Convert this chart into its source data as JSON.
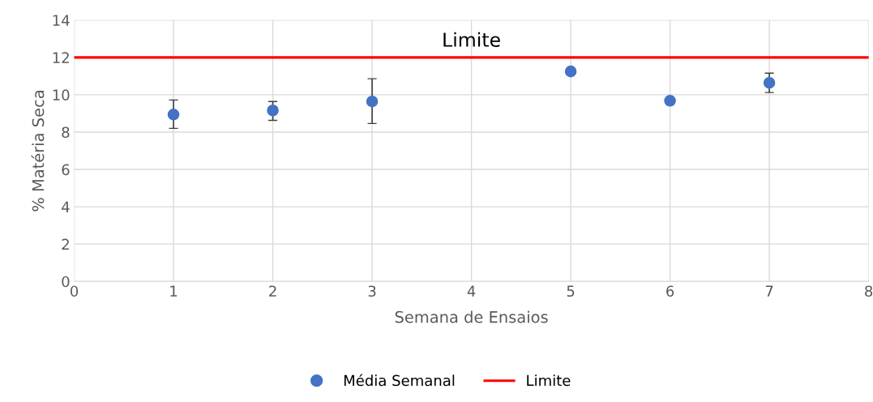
{
  "chart_data": {
    "type": "scatter",
    "xlabel": "Semana de Ensaios",
    "ylabel": "% Matéria Seca",
    "x": [
      1,
      2,
      3,
      5,
      6,
      7
    ],
    "series": [
      {
        "name": "Média Semanal",
        "color": "#4472c4",
        "values": [
          8.94,
          9.16,
          9.64,
          11.25,
          9.68,
          10.64
        ],
        "errors": [
          [
            8.2,
            9.72
          ],
          [
            8.63,
            9.64
          ],
          [
            8.46,
            10.86
          ],
          null,
          null,
          [
            10.12,
            11.16
          ]
        ]
      }
    ],
    "xlim": [
      0,
      8
    ],
    "xticks": [
      0,
      1,
      2,
      3,
      4,
      5,
      6,
      7,
      8
    ],
    "ylim": [
      0,
      14
    ],
    "yticks": [
      0,
      2,
      4,
      6,
      8,
      10,
      12,
      14
    ],
    "ref_lines": [
      {
        "axis": "y",
        "value": 12,
        "label": "Limite",
        "color": "#ff0000",
        "line_style": "solid"
      }
    ],
    "annotations": [
      {
        "text": "Limite",
        "x": 4,
        "y": 12
      }
    ],
    "grid": true,
    "legend": "bottom",
    "marker": "circle"
  }
}
